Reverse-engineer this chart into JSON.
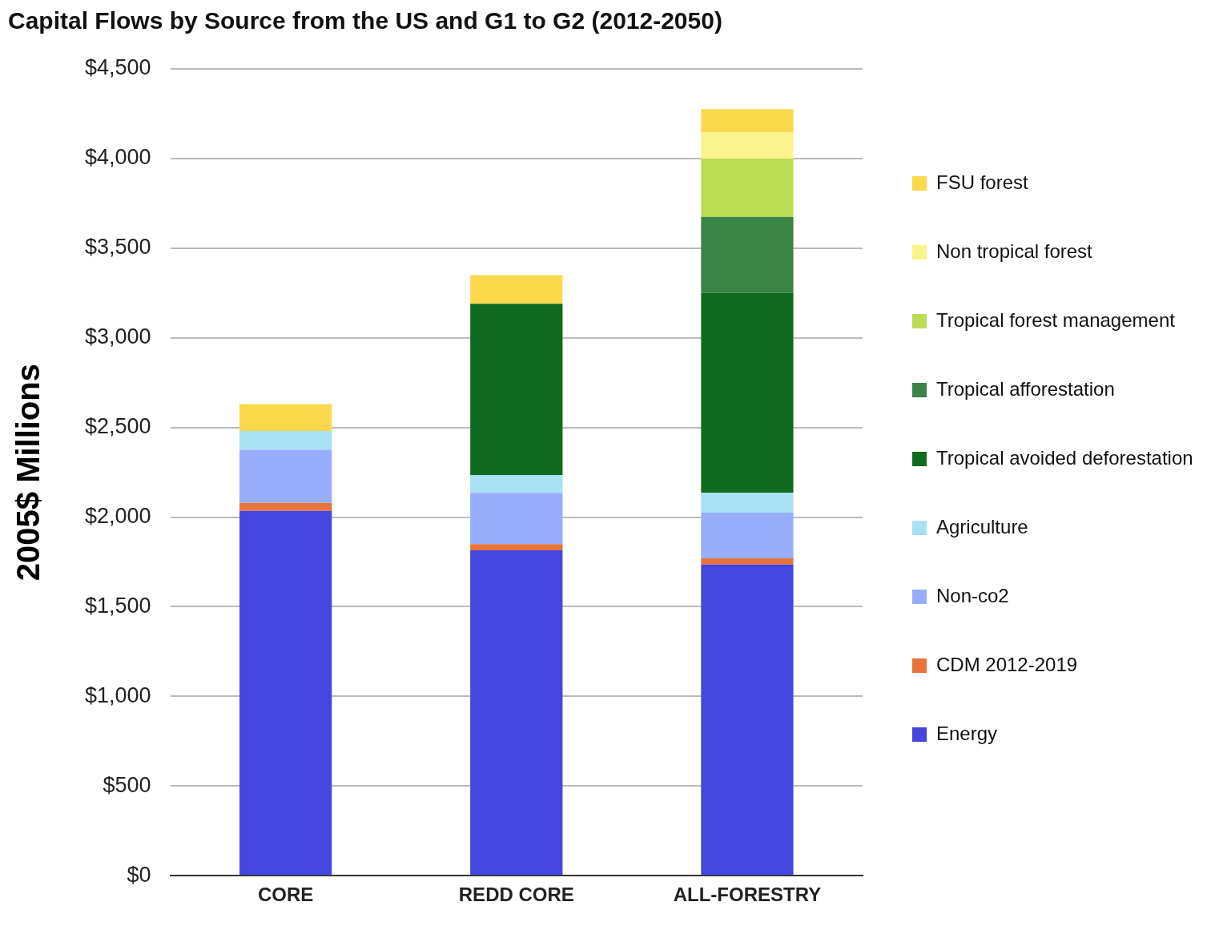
{
  "chart_data": {
    "type": "bar",
    "title": "Capital Flows by Source from the US and G1 to G2 (2012-2050)",
    "ylabel": "2005$ Millions",
    "categories": [
      "CORE",
      "REDD CORE",
      "ALL-FORESTRY"
    ],
    "stacked": true,
    "grid": "y",
    "legend": "right",
    "ylim": [
      0,
      4500
    ],
    "yticks": [
      {
        "value": 0,
        "label": "$0"
      },
      {
        "value": 500,
        "label": "$500"
      },
      {
        "value": 1000,
        "label": "$1,000"
      },
      {
        "value": 1500,
        "label": "$1,500"
      },
      {
        "value": 2000,
        "label": "$2,000"
      },
      {
        "value": 2500,
        "label": "$2,500"
      },
      {
        "value": 3000,
        "label": "$3,000"
      },
      {
        "value": 3500,
        "label": "$3,500"
      },
      {
        "value": 4000,
        "label": "$4,000"
      },
      {
        "value": 4500,
        "label": "$4,500"
      }
    ],
    "series": [
      {
        "name": "Energy",
        "color": "#4545e0",
        "values": [
          2035,
          1815,
          1735
        ]
      },
      {
        "name": "CDM 2012-2019",
        "color": "#e8743b",
        "values": [
          45,
          35,
          35
        ]
      },
      {
        "name": "Non-co2",
        "color": "#98aefc",
        "values": [
          295,
          285,
          255
        ]
      },
      {
        "name": "Agriculture",
        "color": "#a8e0f4",
        "values": [
          105,
          100,
          110
        ]
      },
      {
        "name": "Tropical avoided deforestation",
        "color": "#106b1e",
        "values": [
          0,
          955,
          1115
        ]
      },
      {
        "name": "Tropical afforestation",
        "color": "#3a8546",
        "values": [
          0,
          0,
          425
        ]
      },
      {
        "name": "Tropical forest management",
        "color": "#bcdc54",
        "values": [
          0,
          0,
          325
        ]
      },
      {
        "name": "Non tropical forest",
        "color": "#fbf48c",
        "values": [
          0,
          0,
          145
        ]
      },
      {
        "name": "FSU forest",
        "color": "#fcd84c",
        "values": [
          150,
          160,
          130
        ]
      }
    ]
  }
}
